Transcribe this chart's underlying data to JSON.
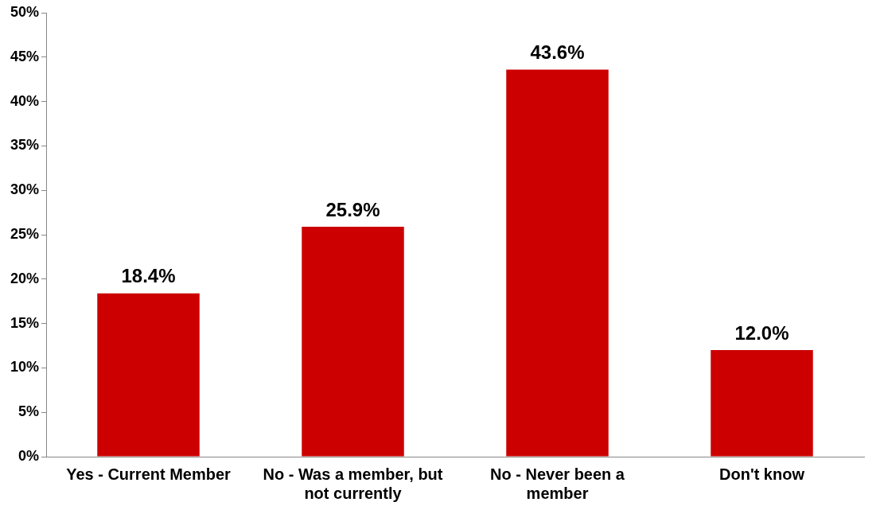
{
  "chart_data": {
    "type": "bar",
    "categories": [
      "Yes - Current Member",
      "No - Was a member, but not currently",
      "No - Never been a member",
      "Don't know"
    ],
    "values": [
      18.4,
      25.9,
      43.6,
      12.0
    ],
    "color": "#cc0000",
    "ylim": [
      0,
      50
    ],
    "yticks": [
      {
        "value": 0,
        "label": "0%"
      },
      {
        "value": 5,
        "label": "5%"
      },
      {
        "value": 10,
        "label": "10%"
      },
      {
        "value": 15,
        "label": "15%"
      },
      {
        "value": 20,
        "label": "20%"
      },
      {
        "value": 25,
        "label": "25%"
      },
      {
        "value": 30,
        "label": "30%"
      },
      {
        "value": 35,
        "label": "35%"
      },
      {
        "value": 40,
        "label": "40%"
      },
      {
        "value": 45,
        "label": "45%"
      },
      {
        "value": 50,
        "label": "50%"
      }
    ],
    "value_labels": [
      "18.4%",
      "25.9%",
      "43.6%",
      "12.0%"
    ],
    "grid": false,
    "legend": false
  }
}
